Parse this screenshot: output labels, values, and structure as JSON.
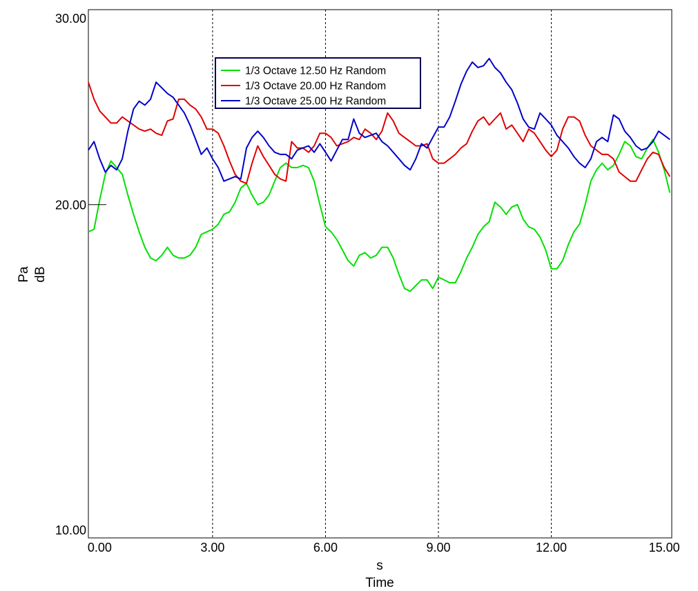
{
  "chart_data": {
    "type": "line",
    "xlabel": "s",
    "xlabel2": "Time",
    "ylabel": "Pa",
    "ylabel2": "dB",
    "xlim": [
      -0.3,
      15.2
    ],
    "ylim": [
      10,
      30
    ],
    "y_scale": "log",
    "x_ticks": [
      0,
      3,
      6,
      9,
      12,
      15
    ],
    "x_tick_labels": [
      "0.00",
      "3.00",
      "6.00",
      "9.00",
      "12.00",
      "15.00"
    ],
    "y_ticks": [
      10,
      20,
      30
    ],
    "y_tick_labels": [
      "10.00",
      "20.00",
      "30.00"
    ],
    "grid": "vertical dotted lines at x ticks",
    "legend_position": "top-left",
    "series": [
      {
        "name": "1/3 Octave 12.50 Hz Random",
        "color": "#00e000",
        "x": [
          -0.3,
          -0.15,
          0,
          0.15,
          0.3,
          0.45,
          0.6,
          0.75,
          0.9,
          1.05,
          1.2,
          1.35,
          1.5,
          1.65,
          1.8,
          1.95,
          2.1,
          2.25,
          2.4,
          2.55,
          2.7,
          2.85,
          3.0,
          3.15,
          3.3,
          3.45,
          3.6,
          3.75,
          3.9,
          4.05,
          4.2,
          4.35,
          4.5,
          4.65,
          4.8,
          4.95,
          5.1,
          5.25,
          5.4,
          5.55,
          5.7,
          5.85,
          6.0,
          6.15,
          6.3,
          6.45,
          6.6,
          6.75,
          6.9,
          7.05,
          7.2,
          7.35,
          7.5,
          7.65,
          7.8,
          7.95,
          8.1,
          8.25,
          8.4,
          8.55,
          8.7,
          8.85,
          9.0,
          9.15,
          9.3,
          9.45,
          9.6,
          9.75,
          9.9,
          10.05,
          10.2,
          10.35,
          10.5,
          10.65,
          10.8,
          10.95,
          11.1,
          11.25,
          11.4,
          11.55,
          11.7,
          11.85,
          12.0,
          12.15,
          12.3,
          12.45,
          12.6,
          12.75,
          12.9,
          13.05,
          13.2,
          13.35,
          13.5,
          13.65,
          13.8,
          13.95,
          14.1,
          14.25,
          14.4,
          14.55,
          14.7,
          14.85,
          15.0,
          15.15
        ],
        "values": [
          18.9,
          19.0,
          20.2,
          21.3,
          21.9,
          21.6,
          21.3,
          20.4,
          19.6,
          18.9,
          18.3,
          17.9,
          17.8,
          18.0,
          18.3,
          18.0,
          17.9,
          17.9,
          18.0,
          18.3,
          18.8,
          18.9,
          19.0,
          19.2,
          19.6,
          19.7,
          20.1,
          20.7,
          20.9,
          20.4,
          20.0,
          20.1,
          20.4,
          21.0,
          21.6,
          21.8,
          21.6,
          21.6,
          21.7,
          21.6,
          21.0,
          20.0,
          19.1,
          18.9,
          18.6,
          18.2,
          17.8,
          17.6,
          18.0,
          18.1,
          17.9,
          18.0,
          18.3,
          18.3,
          17.9,
          17.3,
          16.8,
          16.7,
          16.9,
          17.1,
          17.1,
          16.8,
          17.2,
          17.1,
          17.0,
          17.0,
          17.4,
          17.9,
          18.3,
          18.8,
          19.1,
          19.3,
          20.1,
          19.9,
          19.6,
          19.9,
          20.0,
          19.4,
          19.1,
          19.0,
          18.7,
          18.2,
          17.5,
          17.5,
          17.8,
          18.4,
          18.9,
          19.2,
          20.0,
          21.0,
          21.5,
          21.8,
          21.5,
          21.7,
          22.2,
          22.8,
          22.6,
          22.1,
          22.0,
          22.5,
          22.9,
          22.3,
          21.5,
          20.5
        ]
      },
      {
        "name": "1/3 Octave 20.00 Hz Random",
        "color": "#e00000",
        "x": [
          -0.3,
          -0.15,
          0,
          0.15,
          0.3,
          0.45,
          0.6,
          0.75,
          0.9,
          1.05,
          1.2,
          1.35,
          1.5,
          1.65,
          1.8,
          1.95,
          2.1,
          2.25,
          2.4,
          2.55,
          2.7,
          2.85,
          3.0,
          3.15,
          3.3,
          3.45,
          3.6,
          3.75,
          3.9,
          4.05,
          4.2,
          4.35,
          4.5,
          4.65,
          4.8,
          4.95,
          5.1,
          5.25,
          5.4,
          5.55,
          5.7,
          5.85,
          6.0,
          6.15,
          6.3,
          6.45,
          6.6,
          6.75,
          6.9,
          7.05,
          7.2,
          7.35,
          7.5,
          7.65,
          7.8,
          7.95,
          8.1,
          8.25,
          8.4,
          8.55,
          8.7,
          8.85,
          9.0,
          9.15,
          9.3,
          9.45,
          9.6,
          9.75,
          9.9,
          10.05,
          10.2,
          10.35,
          10.5,
          10.65,
          10.8,
          10.95,
          11.1,
          11.25,
          11.4,
          11.55,
          11.7,
          11.85,
          12.0,
          12.15,
          12.3,
          12.45,
          12.6,
          12.75,
          12.9,
          13.05,
          13.2,
          13.35,
          13.5,
          13.65,
          13.8,
          13.95,
          14.1,
          14.25,
          14.4,
          14.55,
          14.7,
          14.85,
          15.0,
          15.15
        ],
        "values": [
          25.8,
          24.9,
          24.3,
          24.0,
          23.7,
          23.7,
          24.0,
          23.8,
          23.6,
          23.4,
          23.3,
          23.4,
          23.2,
          23.1,
          23.8,
          23.9,
          24.9,
          24.9,
          24.6,
          24.4,
          24.0,
          23.4,
          23.4,
          23.2,
          22.6,
          21.9,
          21.3,
          21.0,
          20.9,
          21.8,
          22.6,
          22.1,
          21.7,
          21.3,
          21.1,
          21.0,
          22.8,
          22.5,
          22.5,
          22.3,
          22.6,
          23.2,
          23.2,
          23.0,
          22.6,
          22.7,
          22.8,
          23.0,
          22.9,
          23.4,
          23.2,
          22.9,
          23.3,
          24.2,
          23.8,
          23.2,
          23.0,
          22.8,
          22.6,
          22.6,
          22.7,
          22.0,
          21.8,
          21.8,
          22.0,
          22.2,
          22.5,
          22.7,
          23.3,
          23.8,
          24.0,
          23.6,
          23.9,
          24.2,
          23.4,
          23.6,
          23.2,
          22.8,
          23.4,
          23.2,
          22.8,
          22.4,
          22.1,
          22.4,
          23.4,
          24.0,
          24.0,
          23.8,
          23.1,
          22.6,
          22.4,
          22.2,
          22.2,
          22.0,
          21.4,
          21.2,
          21.0,
          21.0,
          21.5,
          22.0,
          22.3,
          22.2,
          21.6,
          21.2
        ]
      },
      {
        "name": "1/3 Octave 25.00 Hz Random",
        "color": "#0000c8",
        "x": [
          -0.3,
          -0.15,
          0,
          0.15,
          0.3,
          0.45,
          0.6,
          0.75,
          0.9,
          1.05,
          1.2,
          1.35,
          1.5,
          1.65,
          1.8,
          1.95,
          2.1,
          2.25,
          2.4,
          2.55,
          2.7,
          2.85,
          3.0,
          3.15,
          3.3,
          3.45,
          3.6,
          3.75,
          3.9,
          4.05,
          4.2,
          4.35,
          4.5,
          4.65,
          4.8,
          4.95,
          5.1,
          5.25,
          5.4,
          5.55,
          5.7,
          5.85,
          6.0,
          6.15,
          6.3,
          6.45,
          6.6,
          6.75,
          6.9,
          7.05,
          7.2,
          7.35,
          7.5,
          7.65,
          7.8,
          7.95,
          8.1,
          8.25,
          8.4,
          8.55,
          8.7,
          8.85,
          9.0,
          9.15,
          9.3,
          9.45,
          9.6,
          9.75,
          9.9,
          10.05,
          10.2,
          10.35,
          10.5,
          10.65,
          10.8,
          10.95,
          11.1,
          11.25,
          11.4,
          11.55,
          11.7,
          11.85,
          12.0,
          12.15,
          12.3,
          12.45,
          12.6,
          12.75,
          12.9,
          13.05,
          13.2,
          13.35,
          13.5,
          13.65,
          13.8,
          13.95,
          14.1,
          14.25,
          14.4,
          14.55,
          14.7,
          14.85,
          15.0,
          15.15
        ],
        "values": [
          22.4,
          22.8,
          22.0,
          21.4,
          21.7,
          21.5,
          22.0,
          23.3,
          24.4,
          24.8,
          24.6,
          24.9,
          25.8,
          25.5,
          25.2,
          25.0,
          24.6,
          24.2,
          23.6,
          22.9,
          22.2,
          22.5,
          22.0,
          21.6,
          21.0,
          21.1,
          21.2,
          21.1,
          22.5,
          23.0,
          23.3,
          23.0,
          22.6,
          22.3,
          22.2,
          22.2,
          22.0,
          22.4,
          22.5,
          22.6,
          22.3,
          22.7,
          22.3,
          21.9,
          22.4,
          22.9,
          22.9,
          23.9,
          23.2,
          23.0,
          23.1,
          23.2,
          22.8,
          22.6,
          22.3,
          22.0,
          21.7,
          21.5,
          22.0,
          22.7,
          22.5,
          23.0,
          23.5,
          23.5,
          24.0,
          24.8,
          25.7,
          26.4,
          26.9,
          26.6,
          26.7,
          27.1,
          26.6,
          26.3,
          25.8,
          25.4,
          24.7,
          23.9,
          23.5,
          23.4,
          24.2,
          23.9,
          23.6,
          23.1,
          22.8,
          22.5,
          22.1,
          21.8,
          21.6,
          22.0,
          22.8,
          23.0,
          22.8,
          24.1,
          23.9,
          23.3,
          23.0,
          22.6,
          22.4,
          22.5,
          22.8,
          23.3,
          23.1,
          22.9
        ]
      }
    ]
  }
}
